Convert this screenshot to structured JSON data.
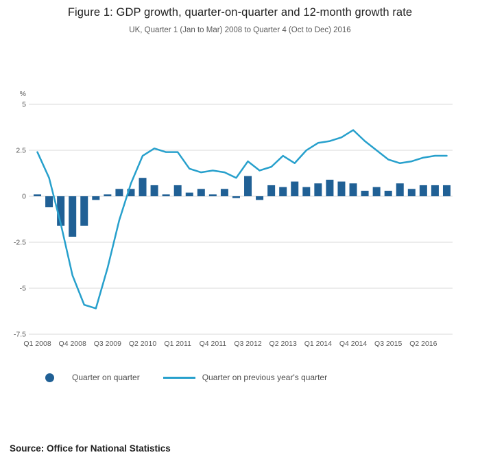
{
  "header": {
    "title": "Figure 1: GDP growth, quarter-on-quarter and 12-month growth rate",
    "subtitle": "UK, Quarter 1 (Jan to Mar) 2008 to Quarter 4 (Oct to Dec) 2016"
  },
  "legend": {
    "bar_label": "Quarter on quarter",
    "line_label": "Quarter on previous year's quarter"
  },
  "footer": {
    "source": "Source: Office for National Statistics"
  },
  "colors": {
    "bar": "#206095",
    "line": "#27a0cc",
    "grid": "#d9d9d9",
    "axis_text": "#595959"
  },
  "chart_data": {
    "type": "bar",
    "title": "Figure 1: GDP growth, quarter-on-quarter and 12-month growth rate",
    "subtitle": "UK, Quarter 1 (Jan to Mar) 2008 to Quarter 4 (Oct to Dec) 2016",
    "unit_label": "%",
    "ylim": [
      -7.5,
      5
    ],
    "yticks": [
      5,
      2.5,
      0,
      -2.5,
      -5,
      -7.5
    ],
    "grid": true,
    "legend_position": "bottom",
    "x_tick_every": 3,
    "x_tick_labels": [
      "Q1 2008",
      "Q4 2008",
      "Q3 2009",
      "Q2 2010",
      "Q1 2011",
      "Q4 2011",
      "Q3 2012",
      "Q2 2013",
      "Q1 2014",
      "Q4 2014",
      "Q3 2015",
      "Q2 2016"
    ],
    "categories": [
      "Q1 2008",
      "Q2 2008",
      "Q3 2008",
      "Q4 2008",
      "Q1 2009",
      "Q2 2009",
      "Q3 2009",
      "Q4 2009",
      "Q1 2010",
      "Q2 2010",
      "Q3 2010",
      "Q4 2010",
      "Q1 2011",
      "Q2 2011",
      "Q3 2011",
      "Q4 2011",
      "Q1 2012",
      "Q2 2012",
      "Q3 2012",
      "Q4 2012",
      "Q1 2013",
      "Q2 2013",
      "Q3 2013",
      "Q4 2013",
      "Q1 2014",
      "Q2 2014",
      "Q3 2014",
      "Q4 2014",
      "Q1 2015",
      "Q2 2015",
      "Q3 2015",
      "Q4 2015",
      "Q1 2016",
      "Q2 2016",
      "Q3 2016",
      "Q4 2016"
    ],
    "series": [
      {
        "name": "Quarter on quarter",
        "type": "bar",
        "values": [
          0.1,
          -0.6,
          -1.6,
          -2.2,
          -1.6,
          -0.2,
          0.1,
          0.4,
          0.4,
          1.0,
          0.6,
          0.1,
          0.6,
          0.2,
          0.4,
          0.1,
          0.4,
          -0.1,
          1.1,
          -0.2,
          0.6,
          0.5,
          0.8,
          0.5,
          0.7,
          0.9,
          0.8,
          0.7,
          0.3,
          0.5,
          0.3,
          0.7,
          0.4,
          0.6,
          0.6,
          0.6
        ]
      },
      {
        "name": "Quarter on previous year's quarter",
        "type": "line",
        "values": [
          2.4,
          1.0,
          -1.5,
          -4.3,
          -5.9,
          -6.1,
          -3.9,
          -1.3,
          0.7,
          2.2,
          2.6,
          2.4,
          2.4,
          1.5,
          1.3,
          1.4,
          1.3,
          1.0,
          1.9,
          1.4,
          1.6,
          2.2,
          1.8,
          2.5,
          2.9,
          3.0,
          3.2,
          3.6,
          3.0,
          2.5,
          2.0,
          1.8,
          1.9,
          2.1,
          2.2,
          2.2
        ]
      }
    ]
  }
}
